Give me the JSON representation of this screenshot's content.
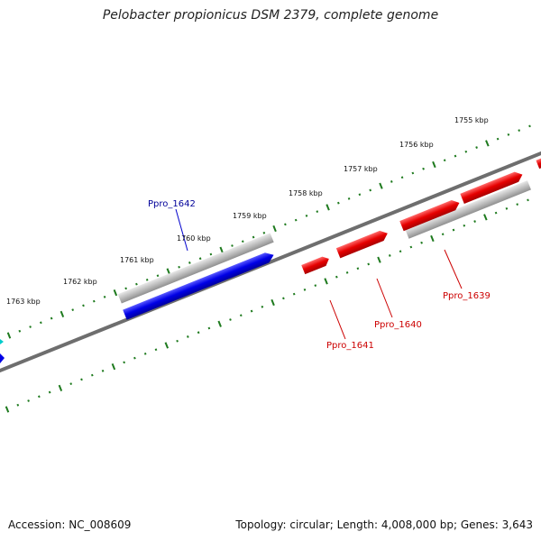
{
  "title": "Pelobacter propionicus DSM 2379, complete genome",
  "footer": {
    "accession": "Accession: NC_008609",
    "summary": "Topology: circular; Length: 4,008,000 bp; Genes: 3,643"
  },
  "ticks": [
    "1755 kbp",
    "1756 kbp",
    "1757 kbp",
    "1758 kbp",
    "1759 kbp",
    "1760 kbp",
    "1761 kbp",
    "1762 kbp",
    "1763 kbp"
  ],
  "genes": {
    "ppro_1639": "Ppro_1639",
    "ppro_1640": "Ppro_1640",
    "ppro_1641": "Ppro_1641",
    "ppro_1642": "Ppro_1642"
  },
  "colors": {
    "forward_gene": "#e60000",
    "reverse_gene": "#0000e6",
    "orf": "#b4b4b4",
    "backbone": "#6e6e6e",
    "ticks": "#1e7a1e",
    "red_label": "#cc0000",
    "blue_label": "#000099"
  }
}
